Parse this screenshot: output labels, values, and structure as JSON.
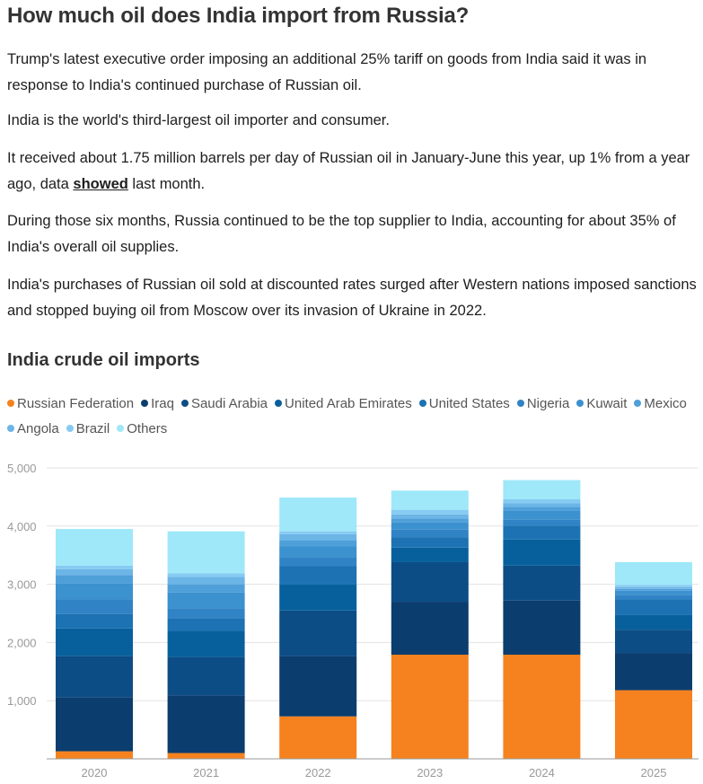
{
  "article": {
    "headline": "How much oil does India import from Russia?",
    "para1": "Trump's latest executive order imposing an additional 25% tariff on goods from India said it was in response to India's continued purchase of Russian oil.",
    "para2": "India is the world's third-largest oil importer and consumer.",
    "para3_before": "It received about 1.75 million barrels per day of Russian oil in January-June this year, up 1% from a year ago, data ",
    "para3_link": "showed",
    "para3_after": " last month.",
    "para4": "During those six months, Russia continued to be the top supplier to India, accounting for about 35% of India's overall oil supplies.",
    "para5": "India's purchases of Russian oil sold at discounted rates surged after Western nations imposed sanctions and stopped buying oil from Moscow over its invasion of Ukraine in 2022."
  },
  "chart_data": {
    "type": "bar",
    "stacked": true,
    "title": "India crude oil imports",
    "categories": [
      "2020",
      "2021",
      "2022",
      "2023",
      "2024",
      "2025"
    ],
    "ylim": [
      0,
      5000
    ],
    "yticks": [
      0,
      1000,
      2000,
      3000,
      4000,
      5000
    ],
    "ytick_labels": [
      "",
      "1,000",
      "2,000",
      "3,000",
      "4,000",
      "5,000"
    ],
    "grid": true,
    "legend_position": "top",
    "series": [
      {
        "name": "Russian Federation",
        "color": "#f5821f",
        "values": [
          130,
          100,
          730,
          1790,
          1790,
          1180
        ]
      },
      {
        "name": "Iraq",
        "color": "#0b3d6e",
        "values": [
          930,
          990,
          1040,
          910,
          930,
          640
        ]
      },
      {
        "name": "Saudi Arabia",
        "color": "#0d4d86",
        "values": [
          710,
          660,
          780,
          680,
          600,
          400
        ]
      },
      {
        "name": "United Arab Emirates",
        "color": "#07609c",
        "values": [
          470,
          450,
          450,
          250,
          450,
          250
        ]
      },
      {
        "name": "United States",
        "color": "#1c72b2",
        "values": [
          250,
          220,
          310,
          180,
          240,
          270
        ]
      },
      {
        "name": "Nigeria",
        "color": "#3083c4",
        "values": [
          250,
          170,
          160,
          130,
          100,
          80
        ]
      },
      {
        "name": "Kuwait",
        "color": "#3c91cf",
        "values": [
          280,
          270,
          180,
          120,
          150,
          70
        ]
      },
      {
        "name": "Mexico",
        "color": "#4f9fd9",
        "values": [
          140,
          140,
          100,
          70,
          70,
          30
        ]
      },
      {
        "name": "Angola",
        "color": "#6bb5e7",
        "values": [
          100,
          130,
          110,
          70,
          60,
          30
        ]
      },
      {
        "name": "Brazil",
        "color": "#86cbf2",
        "values": [
          60,
          60,
          50,
          80,
          70,
          40
        ]
      },
      {
        "name": "Others",
        "color": "#9ee8f9",
        "values": [
          630,
          720,
          580,
          330,
          330,
          390
        ]
      }
    ]
  }
}
